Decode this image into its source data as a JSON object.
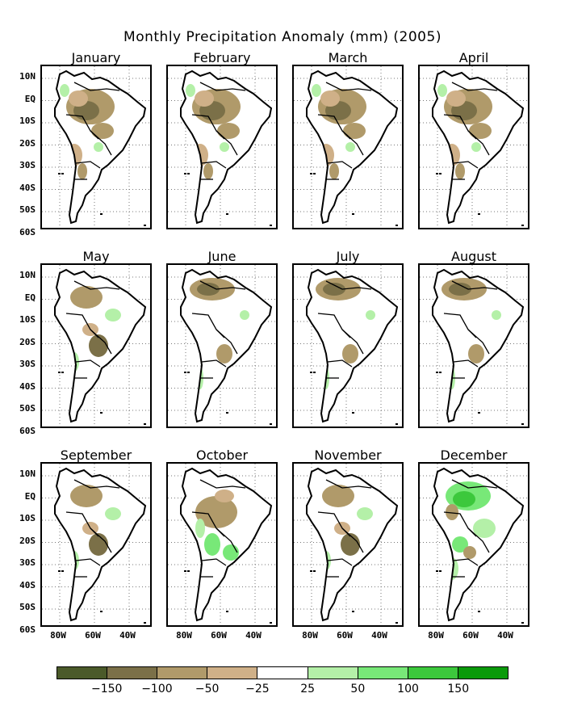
{
  "title": "Monthly Precipitation Anomaly (mm) (2005)",
  "months": [
    "January",
    "February",
    "March",
    "April",
    "May",
    "June",
    "July",
    "August",
    "September",
    "October",
    "November",
    "December"
  ],
  "lat_ticks": [
    "10N",
    "EQ",
    "10S",
    "20S",
    "30S",
    "40S",
    "50S",
    "60S"
  ],
  "lon_ticks": [
    "80W",
    "60W",
    "40W"
  ],
  "legend": {
    "colors": [
      "#4b5a2a",
      "#7b7048",
      "#b09a6a",
      "#cfb088",
      "#ffffff",
      "#b4f0a8",
      "#78e878",
      "#3cc83c",
      "#0a9a0a"
    ],
    "labels": [
      "−150",
      "−100",
      "−50",
      "−25",
      "25",
      "50",
      "100",
      "150"
    ]
  },
  "anomaly_patterns": {
    "January": "dry",
    "February": "dry",
    "March": "dry",
    "April": "dry",
    "May": "mixed",
    "June": "north-dry",
    "July": "north-dry",
    "August": "north-dry",
    "September": "mixed",
    "October": "wet-south",
    "November": "mixed",
    "December": "wet"
  }
}
